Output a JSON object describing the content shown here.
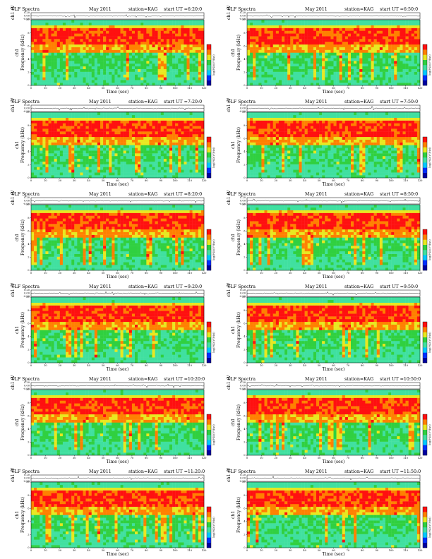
{
  "chart_data": {
    "type": "heatmap",
    "panel_title_text": "VLF Spectra",
    "date": "May 2011",
    "station": "station=KAG",
    "start_prefix": "start UT =",
    "xlabel": "Time (sec)",
    "xlim": [
      0,
      120
    ],
    "xticks": [
      "0",
      "10",
      "20",
      "30",
      "40",
      "50",
      "60",
      "70",
      "80",
      "90",
      "100",
      "110",
      "120"
    ],
    "ylabel_top": "ch1 (V)",
    "ylim_top": [
      -0.2,
      0.2
    ],
    "yticks_top": [
      "0.20",
      "0.00",
      "-0.20"
    ],
    "ylabel_spec_line1": "ch1",
    "ylabel_spec_line2": "Frequency (kHz)",
    "ylim_spec": [
      0,
      10
    ],
    "yticks_spec": [
      "0",
      "2",
      "4",
      "6",
      "8",
      "10"
    ],
    "colorbar_label": "log(PSD(V²/Hz))",
    "colorbar_colors": [
      "#0000a0",
      "#0030ff",
      "#00c8ff",
      "#40e0a0",
      "#30d040",
      "#e8e820",
      "#ff8000",
      "#ff1010"
    ],
    "panels": [
      {
        "start_ut": "6:20:0"
      },
      {
        "start_ut": "6:50:0"
      },
      {
        "start_ut": "7:20:0"
      },
      {
        "start_ut": "7:50:0"
      },
      {
        "start_ut": "8:20:0"
      },
      {
        "start_ut": "8:50:0"
      },
      {
        "start_ut": "9:20:0"
      },
      {
        "start_ut": "9:50:0"
      },
      {
        "start_ut": "10:20:0"
      },
      {
        "start_ut": "10:50:0"
      },
      {
        "start_ut": "11:20:0"
      },
      {
        "start_ut": "11:50:0"
      }
    ]
  }
}
